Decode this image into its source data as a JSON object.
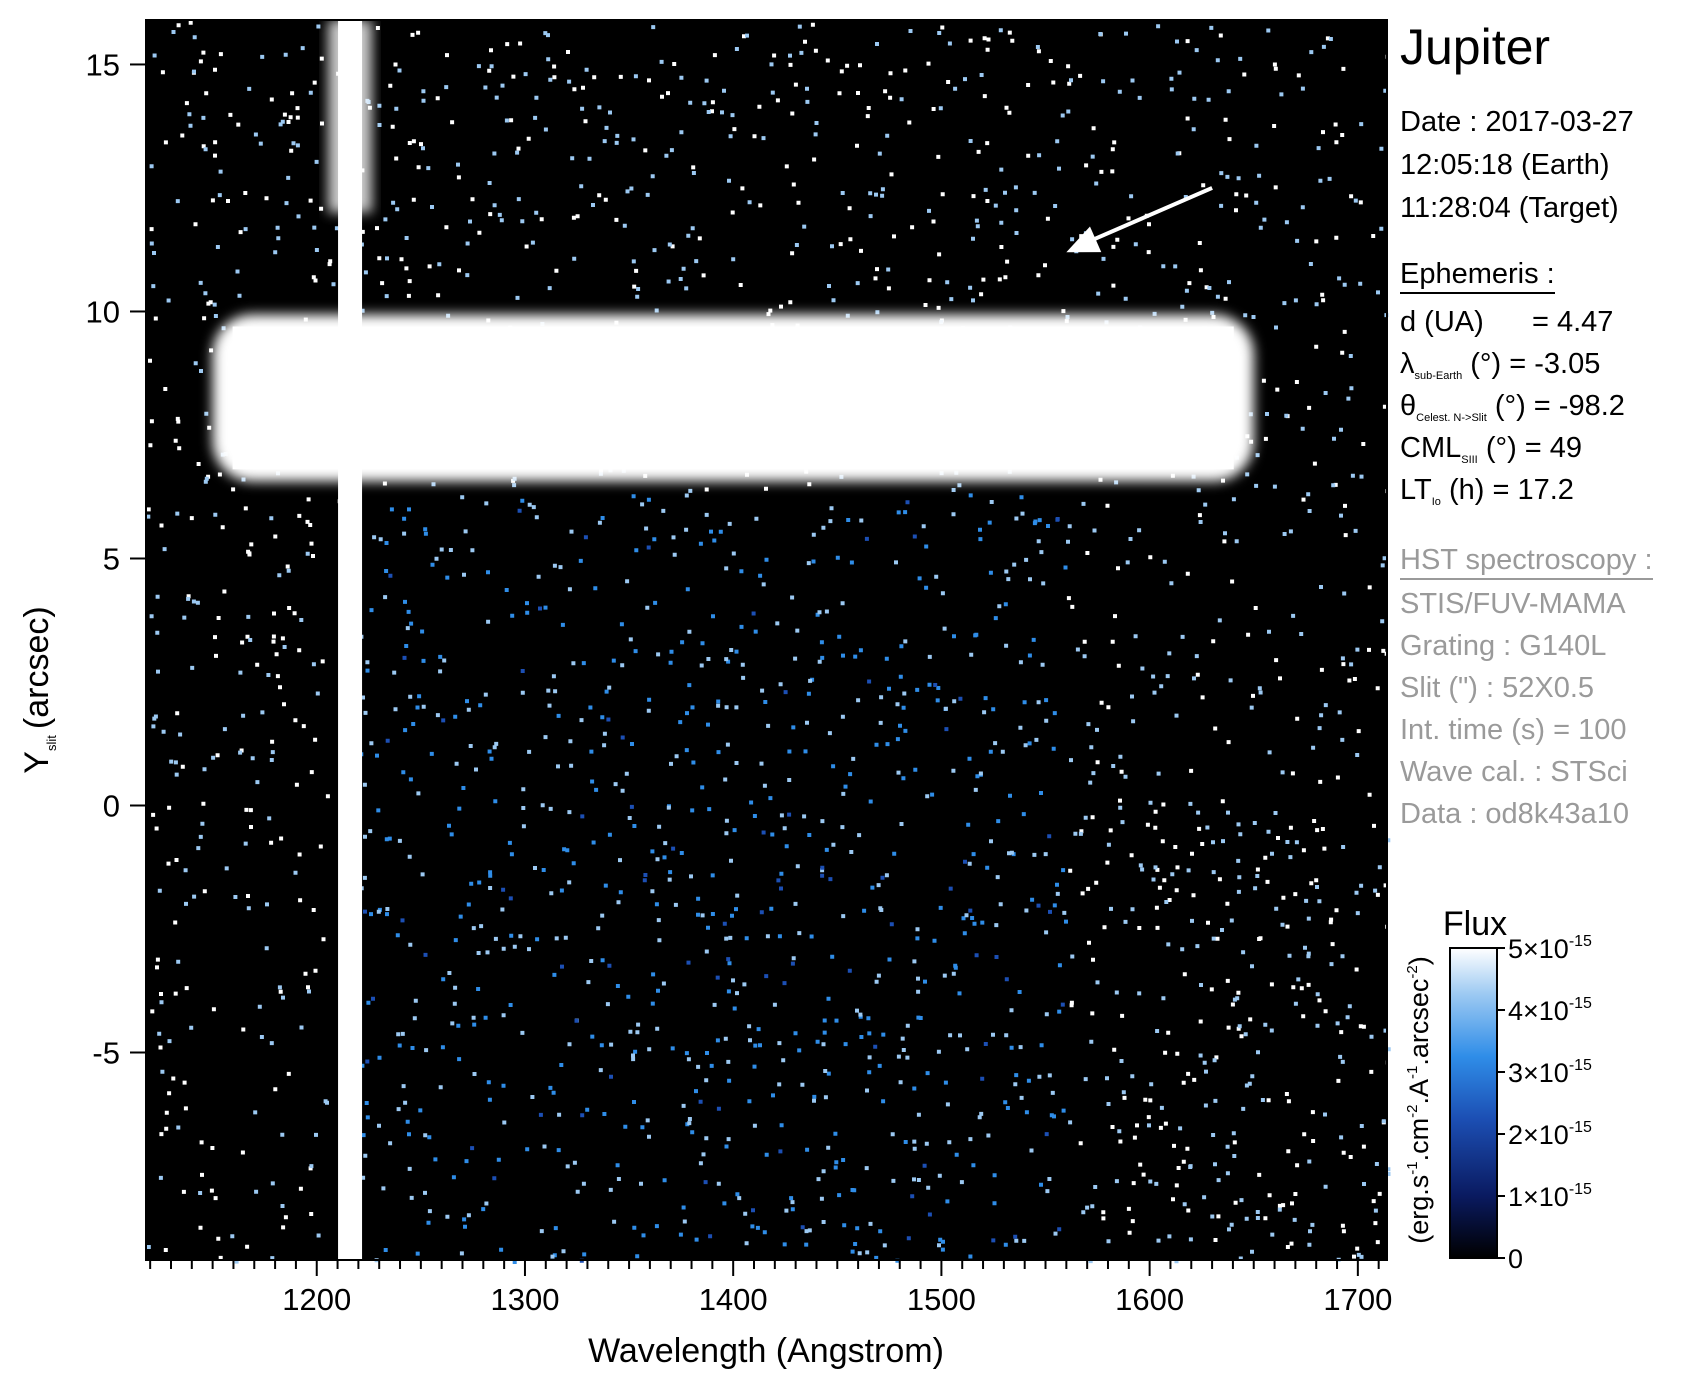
{
  "chart_data": {
    "type": "heatmap",
    "title": "",
    "xlabel": "Wavelength (Angstrom)",
    "ylabel_main": "Y",
    "ylabel_sub": "slit",
    "ylabel_unit": "(arcsec)",
    "xlim": [
      1118,
      1714
    ],
    "ylim": [
      -9.2,
      15.9
    ],
    "xticks": [
      1200,
      1300,
      1400,
      1500,
      1600,
      1700
    ],
    "yticks": [
      15,
      10,
      5,
      0,
      -5
    ],
    "ytick_labels": [
      "15",
      "10",
      "5",
      "0",
      "-5"
    ],
    "features": {
      "lyman_alpha_wavelength": 1216,
      "planet_band_y": [
        6.4,
        10.1
      ],
      "planet_band_x": [
        1150,
        1650
      ],
      "arrow": {
        "from": [
          1630,
          12.5
        ],
        "to": [
          1560,
          11.2
        ]
      }
    },
    "colorbar": {
      "title": "Flux",
      "label_base": "(erg.s",
      "unit_label": "(erg.s-1.cm-2.A-1.arcsec-2)",
      "range": [
        0,
        5e-15
      ],
      "ticks": [
        {
          "value": 5e-15,
          "mantissa": "5×10",
          "exp": "-15"
        },
        {
          "value": 4e-15,
          "mantissa": "4×10",
          "exp": "-15"
        },
        {
          "value": 3e-15,
          "mantissa": "3×10",
          "exp": "-15"
        },
        {
          "value": 2e-15,
          "mantissa": "2×10",
          "exp": "-15"
        },
        {
          "value": 1e-15,
          "mantissa": "1×10",
          "exp": "-15"
        },
        {
          "value": 0,
          "mantissa": "0",
          "exp": ""
        }
      ],
      "colors": [
        "#000000",
        "#0a1a60",
        "#1c4fb4",
        "#2f8de8",
        "#9cc9f2",
        "#ffffff"
      ]
    }
  },
  "info": {
    "target": "Jupiter",
    "date_line": "Date : 2017-03-27",
    "earth_time": "12:05:18 (Earth)",
    "target_time": "11:28:04 (Target)",
    "ephemeris_heading": "Ephemeris :",
    "eph": {
      "d_label": "d (UA)",
      "d_value": "= 4.47",
      "lambda_symbol": "λ",
      "lambda_sub": "sub-Earth",
      "lambda_unit": "(°)",
      "lambda_value": "= -3.05",
      "theta_symbol": "θ",
      "theta_sub": "Celest. N->Slit",
      "theta_unit": "(°)",
      "theta_value": "= -98.2",
      "cml_label": "CML",
      "cml_sub": "SIII",
      "cml_unit": "(°)",
      "cml_value": "= 49",
      "lt_label": "LT",
      "lt_sub": "Io",
      "lt_unit": "(h)",
      "lt_value": "= 17.2"
    },
    "hst_heading": "HST spectroscopy :",
    "instrument": "STIS/FUV-MAMA",
    "grating": "Grating : G140L",
    "slit": "Slit (\") : 52X0.5",
    "int_time": "Int. time (s) = 100",
    "wave_cal": "Wave cal. : STSci",
    "data_id": "Data : od8k43a10"
  }
}
